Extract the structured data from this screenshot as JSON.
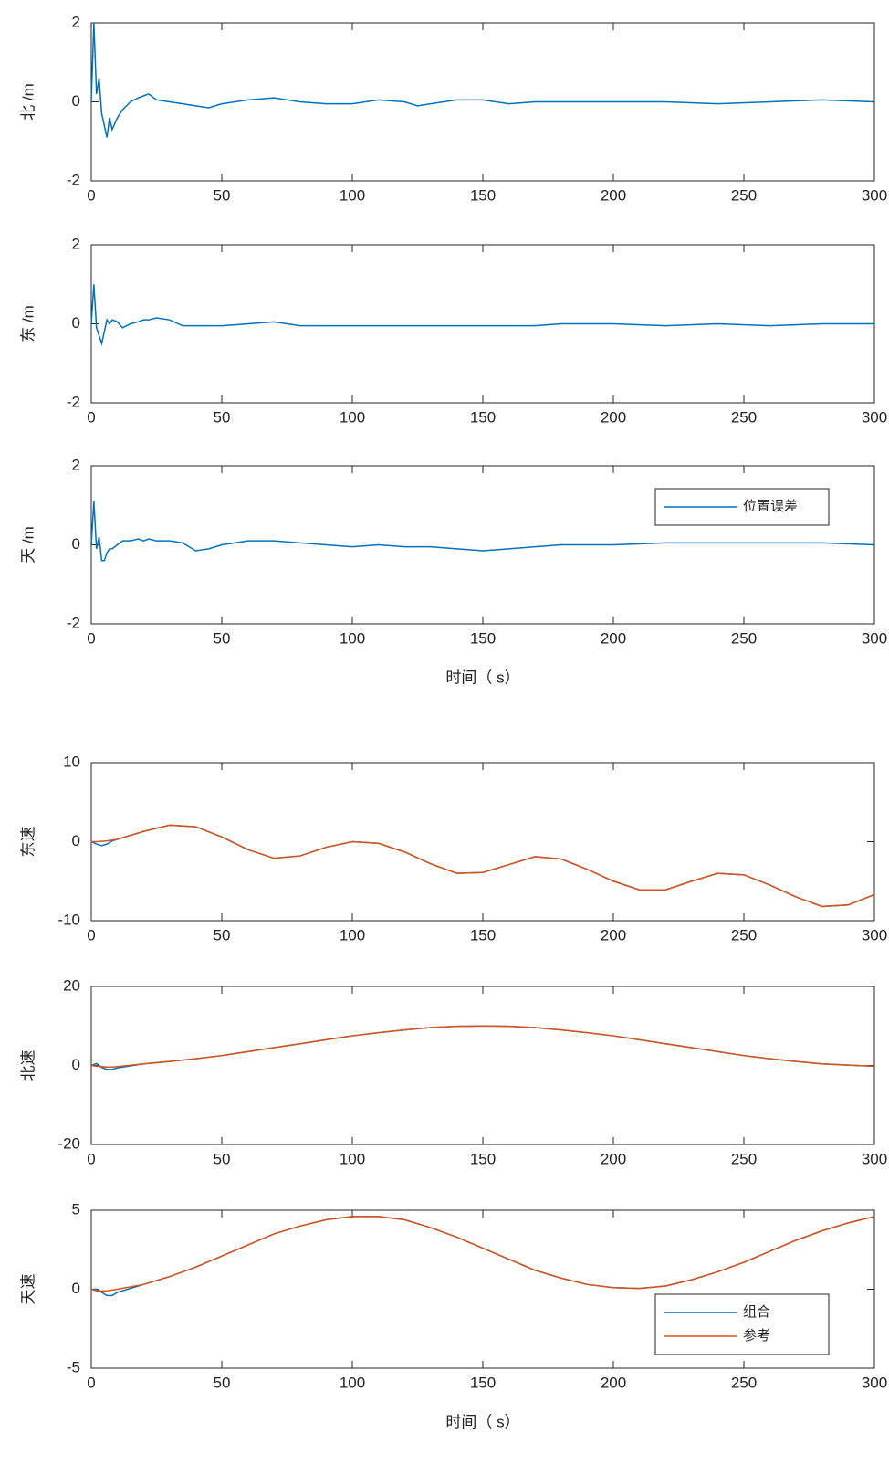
{
  "chart_data": [
    {
      "type": "line",
      "ylabel": "北 /m",
      "xlim": [
        0,
        300
      ],
      "xticks": [
        0,
        50,
        100,
        150,
        200,
        250,
        300
      ],
      "ylim": [
        -2,
        2
      ],
      "yticks": [
        -2,
        0,
        2
      ],
      "x": [
        0,
        1,
        2,
        3,
        4,
        5,
        6,
        7,
        8,
        10,
        12,
        15,
        18,
        20,
        22,
        25,
        30,
        35,
        40,
        45,
        50,
        60,
        70,
        80,
        90,
        100,
        110,
        120,
        125,
        130,
        140,
        150,
        160,
        170,
        180,
        200,
        220,
        240,
        260,
        280,
        300
      ],
      "series": [
        {
          "name": "位置误差",
          "color": "#0072bd",
          "values": [
            0,
            2,
            0.2,
            0.6,
            -0.3,
            -0.6,
            -0.9,
            -0.4,
            -0.7,
            -0.4,
            -0.2,
            0,
            0.1,
            0.15,
            0.2,
            0.05,
            0,
            -0.05,
            -0.1,
            -0.15,
            -0.05,
            0.05,
            0.1,
            0,
            -0.05,
            -0.05,
            0.05,
            0,
            -0.1,
            -0.05,
            0.05,
            0.05,
            -0.05,
            0,
            0,
            0,
            0,
            -0.05,
            0,
            0.05,
            0
          ]
        }
      ]
    },
    {
      "type": "line",
      "ylabel": "东 /m",
      "xlim": [
        0,
        300
      ],
      "xticks": [
        0,
        50,
        100,
        150,
        200,
        250,
        300
      ],
      "ylim": [
        -2,
        2
      ],
      "yticks": [
        -2,
        0,
        2
      ],
      "x": [
        0,
        1,
        2,
        3,
        4,
        5,
        6,
        7,
        8,
        10,
        12,
        15,
        18,
        20,
        22,
        25,
        30,
        35,
        40,
        45,
        50,
        60,
        70,
        80,
        90,
        100,
        110,
        120,
        125,
        130,
        140,
        150,
        160,
        170,
        180,
        200,
        220,
        240,
        260,
        280,
        300
      ],
      "series": [
        {
          "name": "位置误差",
          "color": "#0072bd",
          "values": [
            0,
            1,
            -0.1,
            -0.3,
            -0.5,
            -0.2,
            0.1,
            0,
            0.1,
            0.05,
            -0.1,
            0,
            0.05,
            0.1,
            0.1,
            0.15,
            0.1,
            -0.05,
            -0.05,
            -0.05,
            -0.05,
            0,
            0.05,
            -0.05,
            -0.05,
            -0.05,
            -0.05,
            -0.05,
            -0.05,
            -0.05,
            -0.05,
            -0.05,
            -0.05,
            -0.05,
            0,
            0,
            -0.05,
            0,
            -0.05,
            0,
            0
          ]
        }
      ]
    },
    {
      "type": "line",
      "ylabel": "天 /m",
      "xlabel": "时间（ s）",
      "legend": "upper right",
      "xlim": [
        0,
        300
      ],
      "xticks": [
        0,
        50,
        100,
        150,
        200,
        250,
        300
      ],
      "ylim": [
        -2,
        2
      ],
      "yticks": [
        -2,
        0,
        2
      ],
      "x": [
        0,
        1,
        2,
        3,
        4,
        5,
        6,
        7,
        8,
        10,
        12,
        15,
        18,
        20,
        22,
        25,
        30,
        35,
        40,
        45,
        50,
        60,
        70,
        80,
        90,
        100,
        110,
        120,
        125,
        130,
        140,
        150,
        160,
        170,
        180,
        200,
        220,
        240,
        260,
        280,
        300
      ],
      "series": [
        {
          "name": "位置误差",
          "color": "#0072bd",
          "values": [
            0,
            1.1,
            -0.1,
            0.2,
            -0.4,
            -0.4,
            -0.2,
            -0.1,
            -0.1,
            0,
            0.1,
            0.1,
            0.15,
            0.1,
            0.15,
            0.1,
            0.1,
            0.05,
            -0.15,
            -0.1,
            0,
            0.1,
            0.1,
            0.05,
            0,
            -0.05,
            0,
            -0.05,
            -0.05,
            -0.05,
            -0.1,
            -0.15,
            -0.1,
            -0.05,
            0,
            0,
            0.05,
            0.05,
            0.05,
            0.05,
            0
          ]
        }
      ]
    },
    {
      "type": "line",
      "ylabel": "东速",
      "xlim": [
        0,
        300
      ],
      "xticks": [
        0,
        50,
        100,
        150,
        200,
        250,
        300
      ],
      "ylim": [
        -10,
        10
      ],
      "yticks": [
        -10,
        0,
        10
      ],
      "x": [
        0,
        2,
        4,
        6,
        8,
        10,
        20,
        30,
        40,
        50,
        60,
        70,
        80,
        90,
        100,
        110,
        120,
        130,
        140,
        150,
        160,
        170,
        180,
        190,
        200,
        210,
        220,
        230,
        240,
        250,
        260,
        270,
        280,
        290,
        300
      ],
      "series": [
        {
          "name": "组合",
          "color": "#0072bd",
          "values": [
            0,
            -0.3,
            -0.5,
            -0.3,
            0.1,
            0.3,
            1.3,
            2.1,
            1.9,
            0.6,
            -1.0,
            -2.1,
            -1.8,
            -0.7,
            0,
            -0.2,
            -1.3,
            -2.8,
            -4.0,
            -3.9,
            -2.9,
            -1.9,
            -2.2,
            -3.5,
            -5.0,
            -6.1,
            -6.1,
            -5.0,
            -4.0,
            -4.2,
            -5.5,
            -7.0,
            -8.2,
            -8.0,
            -6.7
          ]
        },
        {
          "name": "参考",
          "color": "#d95319",
          "values": [
            0,
            0,
            0.05,
            0.1,
            0.2,
            0.3,
            1.3,
            2.1,
            1.9,
            0.6,
            -1.0,
            -2.1,
            -1.8,
            -0.7,
            0,
            -0.2,
            -1.3,
            -2.8,
            -4.0,
            -3.9,
            -2.9,
            -1.9,
            -2.2,
            -3.5,
            -5.0,
            -6.1,
            -6.1,
            -5.0,
            -4.0,
            -4.2,
            -5.5,
            -7.0,
            -8.2,
            -8.0,
            -6.7
          ]
        }
      ]
    },
    {
      "type": "line",
      "ylabel": "北速",
      "xlim": [
        0,
        300
      ],
      "xticks": [
        0,
        50,
        100,
        150,
        200,
        250,
        300
      ],
      "ylim": [
        -20,
        20
      ],
      "yticks": [
        -20,
        0,
        20
      ],
      "x": [
        0,
        2,
        4,
        6,
        8,
        10,
        20,
        30,
        40,
        50,
        60,
        70,
        80,
        90,
        100,
        110,
        120,
        130,
        140,
        150,
        160,
        170,
        180,
        190,
        200,
        210,
        220,
        230,
        240,
        250,
        260,
        270,
        280,
        290,
        300
      ],
      "series": [
        {
          "name": "组合",
          "color": "#0072bd",
          "values": [
            0,
            0.5,
            -0.5,
            -1.0,
            -1.0,
            -0.6,
            0.4,
            1.0,
            1.7,
            2.5,
            3.5,
            4.5,
            5.5,
            6.5,
            7.5,
            8.3,
            9.0,
            9.6,
            9.9,
            10,
            9.9,
            9.6,
            9.0,
            8.3,
            7.5,
            6.5,
            5.5,
            4.5,
            3.5,
            2.5,
            1.7,
            1.0,
            0.4,
            0.1,
            -0.2
          ]
        },
        {
          "name": "参考",
          "color": "#d95319",
          "values": [
            0,
            -0.2,
            -0.3,
            -0.4,
            -0.4,
            -0.3,
            0.4,
            1.0,
            1.7,
            2.5,
            3.5,
            4.5,
            5.5,
            6.5,
            7.5,
            8.3,
            9.0,
            9.6,
            9.9,
            10,
            9.9,
            9.6,
            9.0,
            8.3,
            7.5,
            6.5,
            5.5,
            4.5,
            3.5,
            2.5,
            1.7,
            1.0,
            0.4,
            0.1,
            -0.2
          ]
        }
      ]
    },
    {
      "type": "line",
      "ylabel": "天速",
      "xlabel": "时间（ s）",
      "legend": "lower right",
      "xlim": [
        0,
        300
      ],
      "xticks": [
        0,
        50,
        100,
        150,
        200,
        250,
        300
      ],
      "ylim": [
        -5,
        5
      ],
      "yticks": [
        -5,
        0,
        5
      ],
      "x": [
        0,
        2,
        4,
        6,
        8,
        10,
        20,
        30,
        40,
        50,
        60,
        70,
        80,
        90,
        100,
        110,
        120,
        130,
        140,
        150,
        160,
        170,
        180,
        190,
        200,
        210,
        220,
        230,
        240,
        250,
        260,
        270,
        280,
        290,
        300
      ],
      "series": [
        {
          "name": "组合",
          "color": "#0072bd",
          "values": [
            0,
            0,
            -0.2,
            -0.4,
            -0.4,
            -0.2,
            0.3,
            0.8,
            1.4,
            2.1,
            2.8,
            3.5,
            4.0,
            4.4,
            4.6,
            4.6,
            4.4,
            3.9,
            3.3,
            2.6,
            1.9,
            1.2,
            0.7,
            0.3,
            0.1,
            0.05,
            0.2,
            0.6,
            1.1,
            1.7,
            2.4,
            3.1,
            3.7,
            4.2,
            4.6
          ]
        },
        {
          "name": "参考",
          "color": "#d95319",
          "values": [
            0,
            -0.1,
            -0.1,
            -0.1,
            -0.05,
            0,
            0.3,
            0.8,
            1.4,
            2.1,
            2.8,
            3.5,
            4.0,
            4.4,
            4.6,
            4.6,
            4.4,
            3.9,
            3.3,
            2.6,
            1.9,
            1.2,
            0.7,
            0.3,
            0.1,
            0.05,
            0.2,
            0.6,
            1.1,
            1.7,
            2.4,
            3.1,
            3.7,
            4.2,
            4.6
          ]
        }
      ]
    }
  ]
}
